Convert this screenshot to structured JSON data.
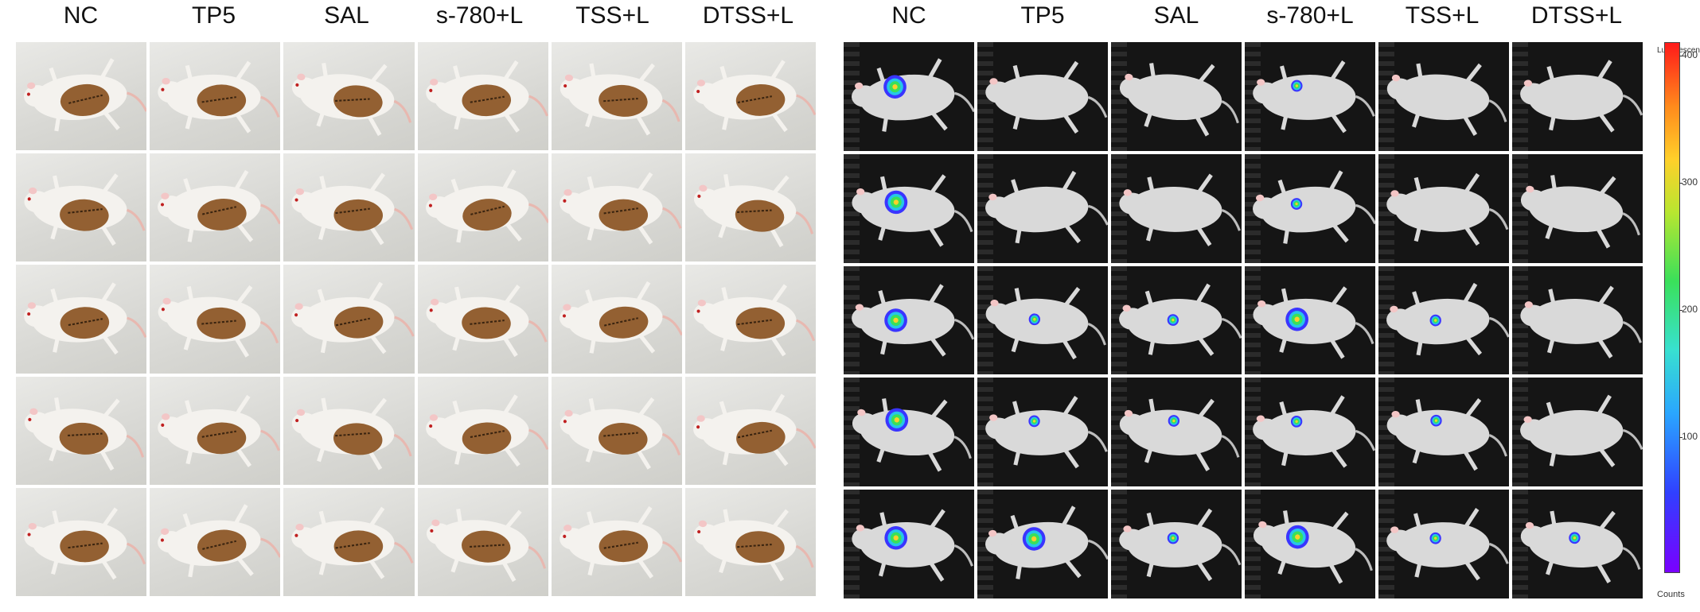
{
  "photo_panel": {
    "columns": [
      "NC",
      "TP5",
      "SAL",
      "s-780+L",
      "TSS+L",
      "DTSS+L"
    ],
    "rows": 5
  },
  "biolum_panel": {
    "columns": [
      "NC",
      "TP5",
      "SAL",
      "s-780+L",
      "TSS+L",
      "DTSS+L"
    ],
    "rows": 5,
    "signal_map": [
      [
        2,
        0,
        0,
        1,
        0,
        0
      ],
      [
        2,
        0,
        0,
        1,
        0,
        0
      ],
      [
        2,
        1,
        1,
        2,
        1,
        0
      ],
      [
        2,
        1,
        1,
        1,
        1,
        0
      ],
      [
        2,
        2,
        1,
        2,
        1,
        1
      ]
    ]
  },
  "colorbar": {
    "title": "Luminescen",
    "unit": "Counts",
    "ticks": [
      "400",
      "300",
      "200",
      "100"
    ],
    "tick_values": [
      400,
      300,
      200,
      100
    ],
    "range": [
      0,
      420
    ],
    "colors": [
      "#7a00ff",
      "#3040ff",
      "#2aa6ff",
      "#3ae05a",
      "#ffd02a",
      "#ff1a1a"
    ]
  },
  "colors": {
    "wound": "#8a5422",
    "fur": "#f4f2ee",
    "background_dark": "#151515"
  }
}
